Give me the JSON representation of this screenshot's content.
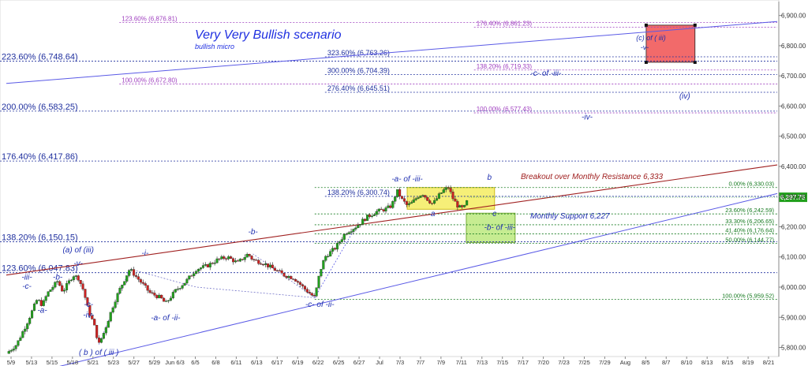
{
  "chart_data": {
    "type": "candlestick",
    "title": "Very Very Bullish scenario",
    "subtitle": "bullish micro",
    "ylim": [
      5770,
      6920
    ],
    "y_ticks": [
      "5,800.00",
      "5,900.00",
      "6,000.00",
      "6,100.00",
      "6,200.00",
      "6,300.00",
      "6,400.00",
      "6,500.00",
      "6,600.00",
      "6,700.00",
      "6,800.00",
      "6,900.00"
    ],
    "y_tick_values": [
      5800,
      5900,
      6000,
      6100,
      6200,
      6300,
      6400,
      6500,
      6600,
      6700,
      6800,
      6900
    ],
    "x_ticks": [
      "5/9",
      "5/13",
      "5/15",
      "5/18",
      "5/21",
      "5/23",
      "5/27",
      "5/29",
      "Jun 6/3",
      "6/5",
      "6/8",
      "6/11",
      "6/13",
      "6/17",
      "6/19",
      "6/22",
      "6/25",
      "6/27",
      "Jul",
      "7/3",
      "7/7",
      "7/9",
      "7/11",
      "7/13",
      "7/15",
      "7/17",
      "7/20",
      "7/23",
      "7/25",
      "7/29",
      "Aug",
      "8/5",
      "8/7",
      "8/10",
      "8/13",
      "8/15",
      "8/19",
      "8/21"
    ],
    "last_price": "6,297.75",
    "last_price_value": 6297.75,
    "path_points": [
      [
        0,
        5780
      ],
      [
        2,
        5810
      ],
      [
        4,
        5880
      ],
      [
        6,
        5960
      ],
      [
        7,
        5940
      ],
      [
        8,
        5980
      ],
      [
        10,
        6020
      ],
      [
        11,
        5985
      ],
      [
        13,
        6040
      ],
      [
        14,
        6030
      ],
      [
        15,
        5990
      ],
      [
        16,
        5920
      ],
      [
        17,
        5880
      ],
      [
        18,
        5810
      ],
      [
        19,
        5850
      ],
      [
        21,
        5950
      ],
      [
        22,
        5990
      ],
      [
        24,
        6060
      ],
      [
        26,
        6020
      ],
      [
        28,
        5980
      ],
      [
        30,
        5965
      ],
      [
        31,
        5945
      ],
      [
        33,
        5990
      ],
      [
        35,
        6020
      ],
      [
        37,
        6060
      ],
      [
        39,
        6070
      ],
      [
        41,
        6090
      ],
      [
        43,
        6100
      ],
      [
        45,
        6080
      ],
      [
        47,
        6110
      ],
      [
        48,
        6090
      ],
      [
        50,
        6080
      ],
      [
        52,
        6060
      ],
      [
        54,
        6040
      ],
      [
        56,
        6030
      ],
      [
        58,
        5995
      ],
      [
        59,
        5980
      ],
      [
        60,
        5965
      ],
      [
        61,
        6050
      ],
      [
        62,
        6100
      ],
      [
        64,
        6130
      ],
      [
        66,
        6180
      ],
      [
        68,
        6200
      ],
      [
        70,
        6230
      ],
      [
        72,
        6250
      ],
      [
        74,
        6260
      ],
      [
        75,
        6270
      ],
      [
        76,
        6320
      ],
      [
        77,
        6290
      ],
      [
        78,
        6270
      ],
      [
        79,
        6280
      ],
      [
        80,
        6300
      ],
      [
        81,
        6310
      ],
      [
        82,
        6290
      ],
      [
        83,
        6275
      ],
      [
        84,
        6300
      ],
      [
        85,
        6320
      ],
      [
        86,
        6330
      ],
      [
        87,
        6290
      ],
      [
        88,
        6265
      ],
      [
        89,
        6260
      ],
      [
        90,
        6298
      ]
    ],
    "lines": {
      "upper": {
        "x0": 0,
        "y0": 6675,
        "x1": 150,
        "y1": 6880
      },
      "resistance": {
        "x0": 0,
        "y0": 6040,
        "x1": 150,
        "y1": 6405
      },
      "lower": {
        "x0": 0,
        "y0": 5695,
        "x1": 150,
        "y1": 6310
      },
      "aux": {
        "x0": 60,
        "y0": 5965,
        "x1": 68,
        "y1": 6200
      }
    },
    "candle_x_max": 90,
    "x_max": 150
  },
  "fib_levels": [
    {
      "label": "223.60% (6,748.64)",
      "value": 6748.64,
      "style": "big"
    },
    {
      "label": "200.00% (6,583.25)",
      "value": 6583.25,
      "style": "big"
    },
    {
      "label": "176.40% (6,417.86)",
      "value": 6417.86,
      "style": "big"
    },
    {
      "label": "138.20% (6,150.15)",
      "value": 6150.15,
      "style": "big"
    },
    {
      "label": "123.60% (6,047.83)",
      "value": 6047.83,
      "style": "big"
    },
    {
      "label": "123.60% (6,876.81)",
      "value": 6876.81,
      "style": "purple-left"
    },
    {
      "label": "100.00% (6,672.80)",
      "value": 6672.8,
      "style": "purple-left"
    },
    {
      "label": "323.60% (6,763.26)",
      "value": 6763.26,
      "style": "mid"
    },
    {
      "label": "300.00% (6,704.39)",
      "value": 6704.39,
      "style": "mid"
    },
    {
      "label": "276.40% (6,645.51)",
      "value": 6645.51,
      "style": "mid"
    },
    {
      "label": "138.20% (6,300.74)",
      "value": 6300.74,
      "style": "mid"
    },
    {
      "label": "176.40% (6,861.23)",
      "value": 6861.23,
      "style": "purple-right"
    },
    {
      "label": "138.20% (6,719.33)",
      "value": 6719.33,
      "style": "purple-right"
    },
    {
      "label": "100.00% (6,577.43)",
      "value": 6577.43,
      "style": "purple-right"
    },
    {
      "label": "0.00% (6,330.03)",
      "value": 6330.03,
      "style": "green"
    },
    {
      "label": "23.60% (6,242.59)",
      "value": 6242.59,
      "style": "green"
    },
    {
      "label": "33.30% (6,206.65)",
      "value": 6206.65,
      "style": "green"
    },
    {
      "label": "41.40% (6,176.64)",
      "value": 6176.64,
      "style": "green"
    },
    {
      "label": "50.00% (6,144.77)",
      "value": 6144.77,
      "style": "green"
    },
    {
      "label": "100.00% (5,959.52)",
      "value": 5959.52,
      "style": "green"
    }
  ],
  "annotations": {
    "breakout": "Breakout over Monthly Resistance 6,333",
    "monthly_support": "Monthly Support 6,227",
    "waves": [
      {
        "text": "(a) of (iii)",
        "x": 14,
        "y": 6115
      },
      {
        "text": "-v-",
        "x": 14,
        "y": 6070
      },
      {
        "text": "-iii-",
        "x": 4,
        "y": 6025
      },
      {
        "text": "-c-",
        "x": 4,
        "y": 5995
      },
      {
        "text": "-b-",
        "x": 10,
        "y": 6025
      },
      {
        "text": "-a-",
        "x": 7,
        "y": 5915
      },
      {
        "text": "-c-",
        "x": 16,
        "y": 5935
      },
      {
        "text": "-iv-",
        "x": 16,
        "y": 5900
      },
      {
        "text": "( b ) of ( iii )",
        "x": 18,
        "y": 5775
      },
      {
        "text": "-i-",
        "x": 27,
        "y": 6105
      },
      {
        "text": "-a- of -ii-",
        "x": 31,
        "y": 5890
      },
      {
        "text": "-b-",
        "x": 48,
        "y": 6175
      },
      {
        "text": "-c- of -ii-",
        "x": 61,
        "y": 5935
      },
      {
        "text": "-a- of -iii-",
        "x": 78,
        "y": 6350
      },
      {
        "text": "b",
        "x": 94,
        "y": 6355
      },
      {
        "text": "a",
        "x": 83,
        "y": 6235
      },
      {
        "text": "c",
        "x": 95,
        "y": 6235
      },
      {
        "text": "-b- of -iii-",
        "x": 96,
        "y": 6190
      },
      {
        "text": "-c- of -iii-",
        "x": 105,
        "y": 6700
      },
      {
        "text": "-iv-",
        "x": 113,
        "y": 6555
      },
      {
        "text": "(iv)",
        "x": 132,
        "y": 6625
      }
    ],
    "target_box": {
      "line1": "(c) of ( iii)",
      "line2": "-v-"
    }
  },
  "colors": {
    "up": "#22a01d",
    "down": "#cc2222",
    "fib_blue": "#1f2f9e",
    "fib_purple": "#a040c0",
    "fib_green": "#157a1f",
    "resistance": "#a02020",
    "channel": "#5a5ae6",
    "yellow_box": "#f6ee6a",
    "green_box": "#c4ec8c",
    "red_box": "#f26a6a",
    "price_tag": "#22a01d"
  }
}
